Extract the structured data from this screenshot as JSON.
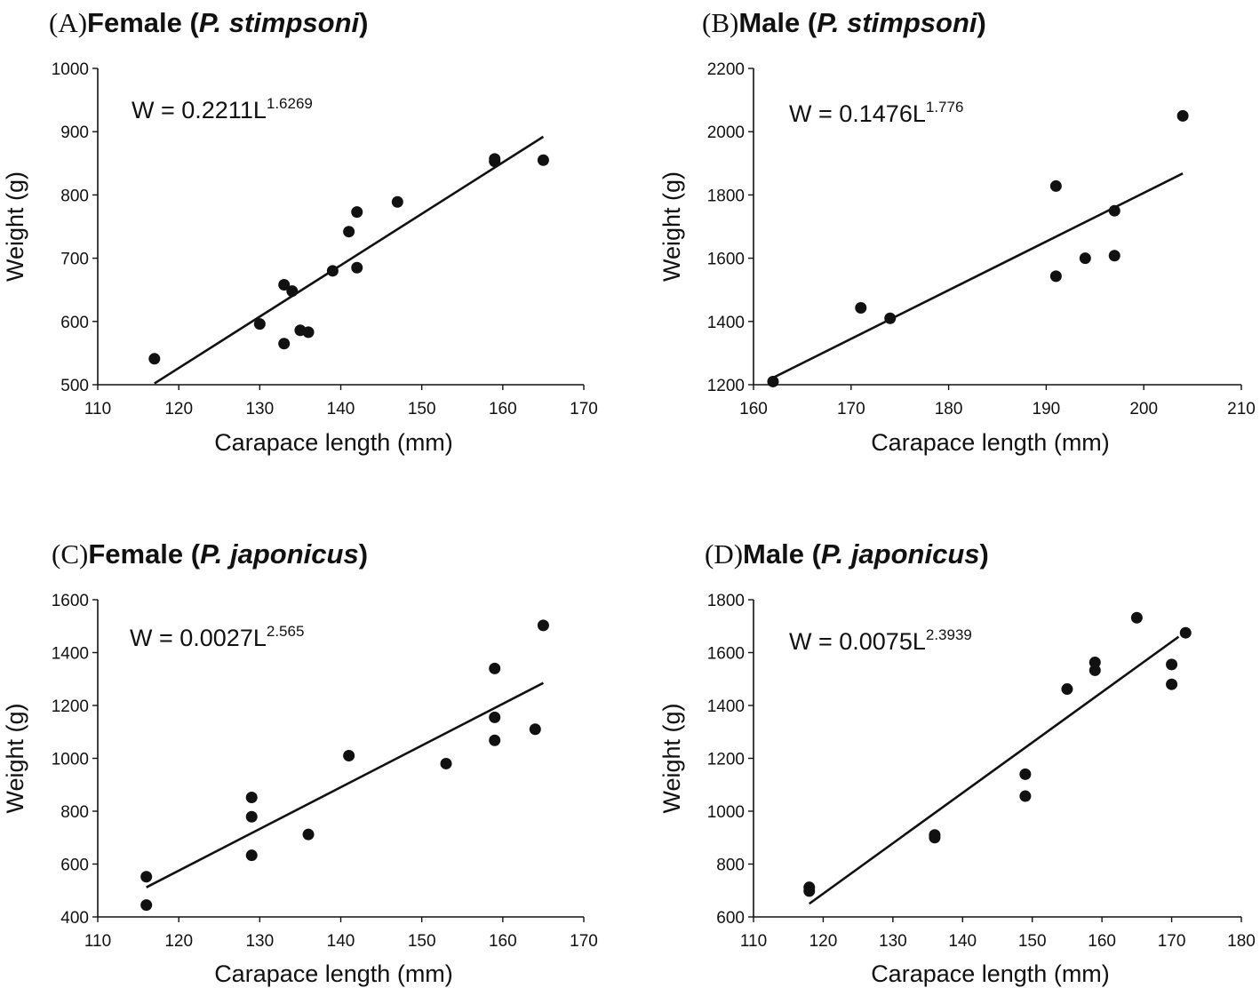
{
  "chart_data": [
    {
      "type": "scatter",
      "label": "(A)",
      "title_prefix": "Female (",
      "title_species": "P. stimpsoni",
      "title_suffix": ")",
      "xlabel": "Carapace length (mm)",
      "ylabel": "Weight (g)",
      "xlim": [
        110,
        170
      ],
      "ylim": [
        500,
        1000
      ],
      "xticks": [
        110,
        120,
        130,
        140,
        150,
        160,
        170
      ],
      "yticks": [
        500,
        600,
        700,
        800,
        900,
        1000
      ],
      "equation": "W = 0.2211L",
      "equation_exponent": "1.6269",
      "trendline": {
        "x": [
          117,
          165
        ],
        "y": [
          502,
          892
        ]
      },
      "points": [
        {
          "x": 117,
          "y": 541
        },
        {
          "x": 130,
          "y": 596
        },
        {
          "x": 133,
          "y": 658
        },
        {
          "x": 133,
          "y": 565
        },
        {
          "x": 134,
          "y": 648
        },
        {
          "x": 135,
          "y": 586
        },
        {
          "x": 136,
          "y": 583
        },
        {
          "x": 139,
          "y": 680
        },
        {
          "x": 141,
          "y": 742
        },
        {
          "x": 142,
          "y": 773
        },
        {
          "x": 142,
          "y": 685
        },
        {
          "x": 147,
          "y": 789
        },
        {
          "x": 159,
          "y": 857
        },
        {
          "x": 159,
          "y": 853
        },
        {
          "x": 165,
          "y": 855
        }
      ]
    },
    {
      "type": "scatter",
      "label": "(B)",
      "title_prefix": "Male (",
      "title_species": "P. stimpsoni",
      "title_suffix": ")",
      "xlabel": "Carapace length (mm)",
      "ylabel": "Weight (g)",
      "xlim": [
        160,
        210
      ],
      "ylim": [
        1200,
        2200
      ],
      "xticks": [
        160,
        170,
        180,
        190,
        200,
        210
      ],
      "yticks": [
        1200,
        1400,
        1600,
        1800,
        2000,
        2200
      ],
      "equation": "W = 0.1476L",
      "equation_exponent": "1.776",
      "trendline": {
        "x": [
          162,
          204
        ],
        "y": [
          1222,
          1868
        ]
      },
      "points": [
        {
          "x": 162,
          "y": 1210
        },
        {
          "x": 171,
          "y": 1443
        },
        {
          "x": 174,
          "y": 1410
        },
        {
          "x": 191,
          "y": 1828
        },
        {
          "x": 191,
          "y": 1543
        },
        {
          "x": 194,
          "y": 1600
        },
        {
          "x": 197,
          "y": 1750
        },
        {
          "x": 197,
          "y": 1608
        },
        {
          "x": 204,
          "y": 2050
        }
      ]
    },
    {
      "type": "scatter",
      "label": "(C)",
      "title_prefix": "Female (",
      "title_species": "P. japonicus",
      "title_suffix": ")",
      "xlabel": "Carapace length (mm)",
      "ylabel": "Weight (g)",
      "xlim": [
        110,
        170
      ],
      "ylim": [
        400,
        1600
      ],
      "xticks": [
        110,
        120,
        130,
        140,
        150,
        160,
        170
      ],
      "yticks": [
        400,
        600,
        800,
        1000,
        1200,
        1400,
        1600
      ],
      "equation": "W = 0.0027L",
      "equation_exponent": "2.565",
      "trendline": {
        "x": [
          116,
          165
        ],
        "y": [
          512,
          1285
        ]
      },
      "points": [
        {
          "x": 116,
          "y": 552
        },
        {
          "x": 116,
          "y": 445
        },
        {
          "x": 129,
          "y": 852
        },
        {
          "x": 129,
          "y": 779
        },
        {
          "x": 129,
          "y": 633
        },
        {
          "x": 136,
          "y": 712
        },
        {
          "x": 141,
          "y": 1010
        },
        {
          "x": 153,
          "y": 980
        },
        {
          "x": 159,
          "y": 1340
        },
        {
          "x": 159,
          "y": 1155
        },
        {
          "x": 159,
          "y": 1068
        },
        {
          "x": 164,
          "y": 1110
        },
        {
          "x": 165,
          "y": 1503
        }
      ]
    },
    {
      "type": "scatter",
      "label": "(D)",
      "title_prefix": "Male (",
      "title_species": "P. japonicus",
      "title_suffix": ")",
      "xlabel": "Carapace length (mm)",
      "ylabel": "Weight (g)",
      "xlim": [
        110,
        180
      ],
      "ylim": [
        600,
        1800
      ],
      "xticks": [
        110,
        120,
        130,
        140,
        150,
        160,
        170,
        180
      ],
      "yticks": [
        600,
        800,
        1000,
        1200,
        1400,
        1600,
        1800
      ],
      "equation": "W = 0.0075L",
      "equation_exponent": "2.3939",
      "trendline": {
        "x": [
          118,
          171
        ],
        "y": [
          650,
          1660
        ]
      },
      "points": [
        {
          "x": 118,
          "y": 712
        },
        {
          "x": 118,
          "y": 698
        },
        {
          "x": 136,
          "y": 910
        },
        {
          "x": 136,
          "y": 900
        },
        {
          "x": 149,
          "y": 1140
        },
        {
          "x": 149,
          "y": 1057
        },
        {
          "x": 155,
          "y": 1462
        },
        {
          "x": 159,
          "y": 1563
        },
        {
          "x": 159,
          "y": 1533
        },
        {
          "x": 165,
          "y": 1732
        },
        {
          "x": 170,
          "y": 1555
        },
        {
          "x": 170,
          "y": 1480
        },
        {
          "x": 172,
          "y": 1675
        }
      ]
    }
  ]
}
